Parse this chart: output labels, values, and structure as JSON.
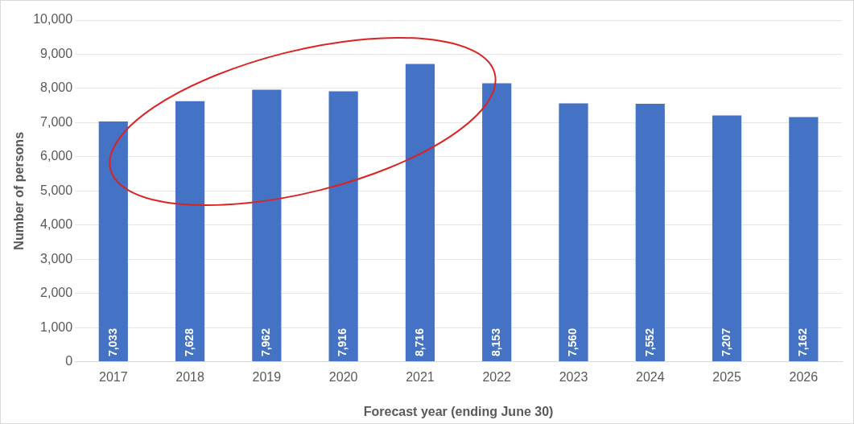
{
  "chart_data": {
    "type": "bar",
    "xlabel": "Forecast year (ending June 30)",
    "ylabel": "Number of persons",
    "categories": [
      "2017",
      "2018",
      "2019",
      "2020",
      "2021",
      "2022",
      "2023",
      "2024",
      "2025",
      "2026"
    ],
    "values": [
      7033,
      7628,
      7962,
      7916,
      8716,
      8153,
      7560,
      7552,
      7207,
      7162
    ],
    "color": "#4472c4",
    "value_labels": [
      "7,033",
      "7,628",
      "7,962",
      "7,916",
      "8,716",
      "8,153",
      "7,560",
      "7,552",
      "7,207",
      "7,162"
    ],
    "ylim": [
      0,
      10000
    ],
    "yticks": [
      {
        "value": 0,
        "label": "0"
      },
      {
        "value": 1000,
        "label": "1,000"
      },
      {
        "value": 2000,
        "label": "2,000"
      },
      {
        "value": 3000,
        "label": "3,000"
      },
      {
        "value": 4000,
        "label": "4,000"
      },
      {
        "value": 5000,
        "label": "5,000"
      },
      {
        "value": 6000,
        "label": "6,000"
      },
      {
        "value": 7000,
        "label": "7,000"
      },
      {
        "value": 8000,
        "label": "8,000"
      },
      {
        "value": 9000,
        "label": "9,000"
      },
      {
        "value": 10000,
        "label": "10,000"
      }
    ],
    "grid": "y"
  }
}
